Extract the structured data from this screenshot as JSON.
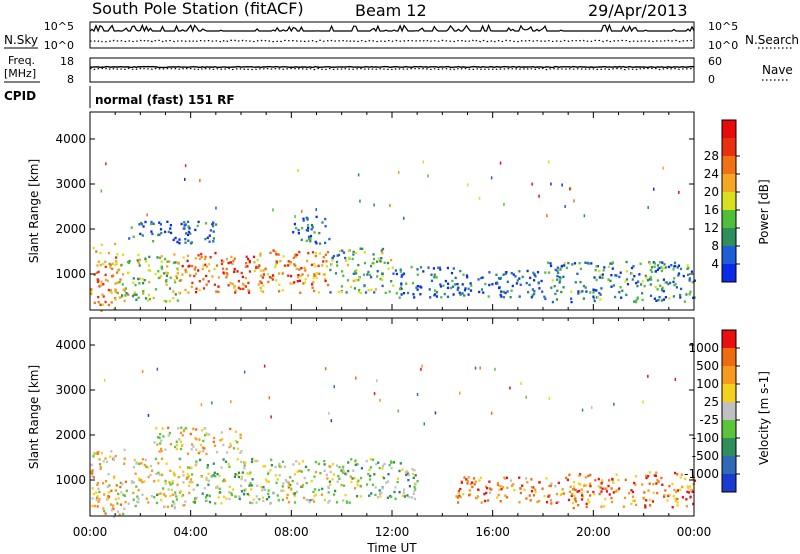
{
  "header": {
    "station": "South Pole Station (fitACF)",
    "beam": "Beam 12",
    "date": "29/Apr/2013"
  },
  "top_panels": {
    "nsky_label": "N.Sky",
    "nsearch_label": "N.Search",
    "nsky_ticks": [
      "10^5",
      "10^0"
    ],
    "nsearch_ticks": [
      "10^5",
      "10^0"
    ],
    "freq_label": "Freq.",
    "freq_unit": "[MHz]",
    "freq_ticks": [
      "18",
      "8"
    ],
    "nave_label": "Nave",
    "nave_ticks": [
      "60",
      "0"
    ],
    "cpid_label": "CPID",
    "cpid_text": "normal (fast) 151 RF"
  },
  "chart_data": [
    {
      "type": "heatmap",
      "name": "power-panel",
      "ylabel": "Slant Range [km]",
      "xlabel": "",
      "ylim": [
        200,
        4600
      ],
      "yticks": [
        1000,
        2000,
        3000,
        4000
      ],
      "xlim": [
        0,
        24
      ],
      "colorbar": {
        "label": "Power [dB]",
        "ticks": [
          "4",
          "8",
          "12",
          "16",
          "20",
          "24",
          "28"
        ],
        "colors": [
          "#0a2be8",
          "#1e5fd8",
          "#2e8f5c",
          "#4fbf3a",
          "#d8e020",
          "#f5a623",
          "#f07214",
          "#e83010",
          "#e80a0a"
        ]
      },
      "regions": [
        {
          "t0": 0.0,
          "t1": 1.2,
          "r0": 200,
          "r1": 1700,
          "level": 0.65
        },
        {
          "t0": 1.2,
          "t1": 3.5,
          "r0": 400,
          "r1": 1500,
          "level": 0.45
        },
        {
          "t0": 3.5,
          "t1": 6.5,
          "r0": 600,
          "r1": 1500,
          "level": 0.75
        },
        {
          "t0": 6.5,
          "t1": 9.5,
          "r0": 600,
          "r1": 1550,
          "level": 0.7
        },
        {
          "t0": 9.5,
          "t1": 12.0,
          "r0": 600,
          "r1": 1600,
          "level": 0.35
        },
        {
          "t0": 12.0,
          "t1": 14.5,
          "r0": 500,
          "r1": 1200,
          "level": 0.2
        },
        {
          "t0": 14.5,
          "t1": 18.0,
          "r0": 500,
          "r1": 1100,
          "level": 0.15
        },
        {
          "t0": 18.0,
          "t1": 24.0,
          "r0": 400,
          "r1": 1300,
          "level": 0.25
        },
        {
          "t0": 1.5,
          "t1": 5.0,
          "r0": 1700,
          "r1": 2200,
          "level": 0.15
        },
        {
          "t0": 8.0,
          "t1": 9.5,
          "r0": 1700,
          "r1": 2300,
          "level": 0.2
        }
      ]
    },
    {
      "type": "heatmap",
      "name": "velocity-panel",
      "ylabel": "Slant Range [km]",
      "xlabel": "Time UT",
      "xticks": [
        "00:00",
        "04:00",
        "08:00",
        "12:00",
        "16:00",
        "20:00",
        "00:00"
      ],
      "ylim": [
        200,
        4600
      ],
      "yticks": [
        1000,
        2000,
        3000,
        4000
      ],
      "xlim": [
        0,
        24
      ],
      "colorbar": {
        "label": "Velocity [m s-1]",
        "ticks": [
          "1000",
          "500",
          "100",
          "25",
          "-25",
          "-100",
          "-500",
          "-1000"
        ],
        "colors": [
          "#1a3ad0",
          "#2e6ab8",
          "#2e8f5c",
          "#5cc43a",
          "#c0c0c0",
          "#f2d21e",
          "#f59a1e",
          "#f06a10",
          "#e81010"
        ]
      },
      "regions": [
        {
          "t0": 0.0,
          "t1": 1.5,
          "r0": 200,
          "r1": 1700,
          "level": 0.6
        },
        {
          "t0": 1.5,
          "t1": 4.0,
          "r0": 400,
          "r1": 1500,
          "level": 0.55
        },
        {
          "t0": 4.0,
          "t1": 7.0,
          "r0": 500,
          "r1": 1500,
          "level": 0.45
        },
        {
          "t0": 7.0,
          "t1": 10.5,
          "r0": 500,
          "r1": 1500,
          "level": 0.5
        },
        {
          "t0": 10.5,
          "t1": 13.0,
          "r0": 600,
          "r1": 1500,
          "level": 0.4
        },
        {
          "t0": 14.5,
          "t1": 19.0,
          "r0": 500,
          "r1": 1100,
          "level": 0.75
        },
        {
          "t0": 19.0,
          "t1": 24.0,
          "r0": 400,
          "r1": 1200,
          "level": 0.78
        },
        {
          "t0": 2.5,
          "t1": 6.0,
          "r0": 1600,
          "r1": 2200,
          "level": 0.6
        }
      ]
    }
  ]
}
